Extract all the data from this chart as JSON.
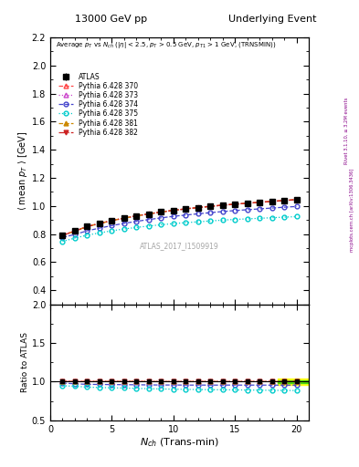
{
  "title_left": "13000 GeV pp",
  "title_right": "Underlying Event",
  "watermark": "ATLAS_2017_I1509919",
  "ylabel_main": "<mean p_T> [GeV]",
  "ylabel_ratio": "Ratio to ATLAS",
  "xlabel": "N_{ch} (Trans-min)",
  "ylim_main": [
    0.3,
    2.2
  ],
  "ylim_ratio": [
    0.5,
    2.0
  ],
  "xlim": [
    0,
    21
  ],
  "x_data": [
    1,
    2,
    3,
    4,
    5,
    6,
    7,
    8,
    9,
    10,
    11,
    12,
    13,
    14,
    15,
    16,
    17,
    18,
    19,
    20
  ],
  "atlas_y": [
    0.79,
    0.82,
    0.853,
    0.874,
    0.894,
    0.912,
    0.928,
    0.943,
    0.957,
    0.968,
    0.979,
    0.988,
    0.997,
    1.005,
    1.012,
    1.019,
    1.025,
    1.032,
    1.038,
    1.044
  ],
  "atlas_yerr": [
    0.006,
    0.005,
    0.005,
    0.005,
    0.004,
    0.004,
    0.004,
    0.004,
    0.004,
    0.004,
    0.004,
    0.004,
    0.004,
    0.004,
    0.004,
    0.004,
    0.004,
    0.004,
    0.005,
    0.006
  ],
  "series": [
    {
      "label": "Pythia 6.428 370",
      "color": "#ff4444",
      "linestyle": "--",
      "marker": "^",
      "fillstyle": "none",
      "y": [
        0.793,
        0.822,
        0.855,
        0.876,
        0.896,
        0.914,
        0.93,
        0.944,
        0.957,
        0.969,
        0.98,
        0.989,
        0.998,
        1.006,
        1.013,
        1.02,
        1.026,
        1.033,
        1.039,
        1.045
      ]
    },
    {
      "label": "Pythia 6.428 373",
      "color": "#cc44cc",
      "linestyle": ":",
      "marker": "^",
      "fillstyle": "none",
      "y": [
        0.792,
        0.82,
        0.853,
        0.874,
        0.895,
        0.913,
        0.929,
        0.943,
        0.957,
        0.968,
        0.979,
        0.988,
        0.997,
        1.005,
        1.012,
        1.019,
        1.025,
        1.032,
        1.038,
        1.044
      ]
    },
    {
      "label": "Pythia 6.428 374",
      "color": "#4444cc",
      "linestyle": "--",
      "marker": "o",
      "fillstyle": "none",
      "y": [
        0.776,
        0.797,
        0.823,
        0.842,
        0.86,
        0.876,
        0.89,
        0.903,
        0.915,
        0.926,
        0.935,
        0.944,
        0.952,
        0.96,
        0.967,
        0.973,
        0.979,
        0.985,
        0.991,
        0.996
      ]
    },
    {
      "label": "Pythia 6.428 375",
      "color": "#00cccc",
      "linestyle": ":",
      "marker": "o",
      "fillstyle": "none",
      "y": [
        0.748,
        0.771,
        0.792,
        0.808,
        0.823,
        0.836,
        0.847,
        0.857,
        0.866,
        0.874,
        0.881,
        0.887,
        0.893,
        0.899,
        0.904,
        0.908,
        0.912,
        0.916,
        0.92,
        0.924
      ]
    },
    {
      "label": "Pythia 6.428 381",
      "color": "#cc8800",
      "linestyle": "--",
      "marker": "^",
      "fillstyle": "full",
      "y": [
        0.792,
        0.82,
        0.853,
        0.874,
        0.895,
        0.913,
        0.929,
        0.943,
        0.957,
        0.968,
        0.979,
        0.988,
        0.997,
        1.005,
        1.012,
        1.019,
        1.025,
        1.032,
        1.038,
        1.045
      ]
    },
    {
      "label": "Pythia 6.428 382",
      "color": "#cc2222",
      "linestyle": "-.",
      "marker": "v",
      "fillstyle": "full",
      "y": [
        0.791,
        0.82,
        0.853,
        0.874,
        0.895,
        0.913,
        0.929,
        0.943,
        0.957,
        0.968,
        0.979,
        0.988,
        0.997,
        1.005,
        1.012,
        1.019,
        1.025,
        1.032,
        1.038,
        1.045
      ]
    }
  ]
}
